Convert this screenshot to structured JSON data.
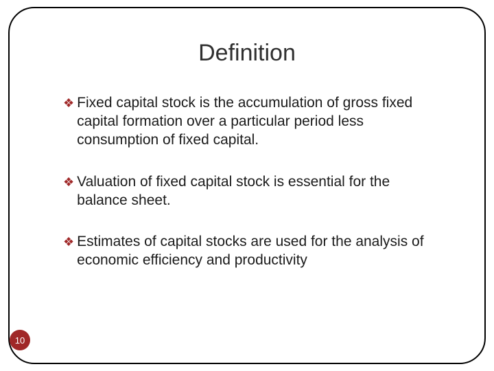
{
  "title": "Definition",
  "bullets": [
    "Fixed capital stock is the accumulation of gross fixed capital formation over a particular period less consumption of fixed capital.",
    "Valuation of fixed capital stock is essential for the balance sheet.",
    "Estimates of capital stocks are used for the analysis of economic efficiency and productivity"
  ],
  "page_number": "10",
  "colors": {
    "accent": "#a02828",
    "text": "#1a1a1a",
    "title": "#2f2f2f",
    "border": "#000000",
    "background": "#ffffff"
  }
}
